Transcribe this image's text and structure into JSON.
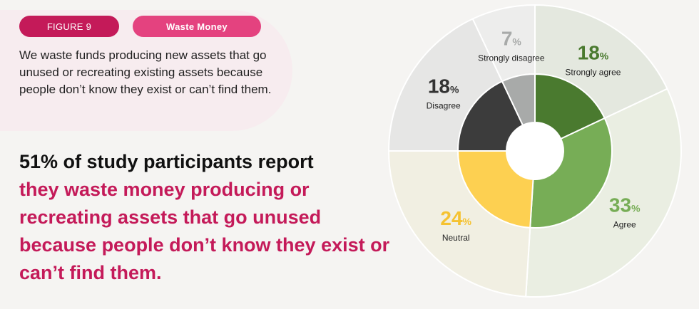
{
  "figure_label": "FIGURE 9",
  "topic_label": "Waste Money",
  "question": "We waste funds producing new assets that go unused or recreating existing assets because people don’t know they exist or can’t find them.",
  "headline": {
    "dark": "51% of study participants report",
    "pink": "they waste money producing or recreating assets that go unused because people don’t know they exist or can’t find them."
  },
  "colors": {
    "pink_dark": "#c41a59",
    "pink_light": "#e4427f"
  },
  "chart_data": {
    "type": "pie",
    "title": "",
    "percent_symbol": "%",
    "slices": [
      {
        "label": "Strongly agree",
        "value": 18,
        "color": "#4a7a2f",
        "outer_color": "#e4e8df",
        "label_color": "#4a7a2f"
      },
      {
        "label": "Agree",
        "value": 33,
        "color": "#77ad56",
        "outer_color": "#eaeee2",
        "label_color": "#77ad56"
      },
      {
        "label": "Neutral",
        "value": 24,
        "color": "#fdd051",
        "outer_color": "#f1efe2",
        "label_color": "#f5c231"
      },
      {
        "label": "Disagree",
        "value": 18,
        "color": "#3c3c3c",
        "outer_color": "#e6e6e5",
        "label_color": "#333333"
      },
      {
        "label": "Strongly disagree",
        "value": 7,
        "color": "#a8aaa9",
        "outer_color": "#ededec",
        "label_color": "#a8aaa9"
      }
    ]
  }
}
